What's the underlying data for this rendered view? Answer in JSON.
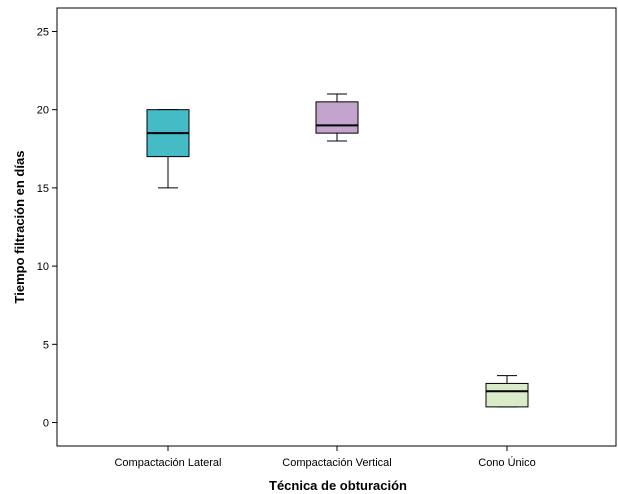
{
  "chart_data": {
    "type": "boxplot",
    "xlabel": "Técnica de obturación",
    "ylabel": "Tiempo filtración en días",
    "ylim": [
      -1.5,
      26.5
    ],
    "yticks": [
      0,
      5,
      10,
      15,
      20,
      25
    ],
    "grid": false,
    "categories": [
      "Compactación Lateral",
      "Compactación Vertical",
      "Cono Único"
    ],
    "boxes": [
      {
        "category": "Compactación Lateral",
        "min": 15,
        "q1": 17,
        "median": 18.5,
        "q3": 20,
        "max": 20,
        "color": "#45BBC5"
      },
      {
        "category": "Compactación Vertical",
        "min": 18,
        "q1": 18.5,
        "median": 19,
        "q3": 20.5,
        "max": 21,
        "color": "#C4A3CD"
      },
      {
        "category": "Cono Único",
        "min": 1,
        "q1": 1,
        "median": 2,
        "q3": 2.5,
        "max": 3,
        "color": "#D9EBC8"
      }
    ]
  }
}
